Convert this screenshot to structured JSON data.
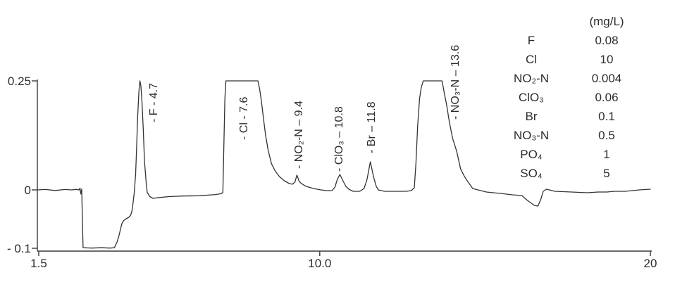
{
  "figure": {
    "background": "#ffffff",
    "text_color": "#2b2b2b",
    "line_color": "#3a3a3a"
  },
  "chart_data": {
    "type": "line",
    "title": "",
    "xlabel": "",
    "ylabel": "",
    "xlim": [
      1.5,
      20
    ],
    "ylim": [
      -0.12,
      0.27
    ],
    "grid": false,
    "legend_position": "top-right",
    "x_ticks": [
      {
        "value": 1.5,
        "label": "1.5"
      },
      {
        "value": 10.0,
        "label": "10.0"
      },
      {
        "value": 20,
        "label": "20"
      }
    ],
    "y_ticks": [
      {
        "value": 0.25,
        "label": "0.25"
      },
      {
        "value": 0,
        "label": "0"
      },
      {
        "value": -0.1,
        "label": "- 0.1"
      }
    ],
    "peaks": [
      {
        "analyte": "F",
        "retention_time_min": 4.7,
        "label": "- F - 4.7"
      },
      {
        "analyte": "Cl",
        "retention_time_min": 7.6,
        "label": "- Cl - 7.6"
      },
      {
        "analyte": "NO₂-N",
        "retention_time_min": 9.4,
        "label": "- NO₂-N – 9.4"
      },
      {
        "analyte": "ClO₃",
        "retention_time_min": 10.8,
        "label": "- ClO₃ – 10.8"
      },
      {
        "analyte": "Br",
        "retention_time_min": 11.8,
        "label": "- Br – 11.8"
      },
      {
        "analyte": "NO₃-N",
        "retention_time_min": 13.6,
        "label": "- NO₃-N – 13.6"
      }
    ],
    "trace": [
      [
        1.46,
        0
      ],
      [
        1.7,
        0.001
      ],
      [
        2.0,
        -0.001
      ],
      [
        2.3,
        0.001
      ],
      [
        2.5,
        0
      ],
      [
        2.62,
        0.0012
      ],
      [
        2.72,
        0
      ],
      [
        2.75,
        0.004
      ],
      [
        2.77,
        -0.007
      ],
      [
        2.8,
        0.002
      ],
      [
        2.82,
        -0.05
      ],
      [
        2.84,
        -0.099
      ],
      [
        3.1,
        -0.0996
      ],
      [
        3.4,
        -0.099
      ],
      [
        3.65,
        -0.0996
      ],
      [
        3.79,
        -0.099
      ],
      [
        3.87,
        -0.089
      ],
      [
        3.92,
        -0.08
      ],
      [
        3.97,
        -0.068
      ],
      [
        4.02,
        -0.057
      ],
      [
        4.07,
        -0.0525
      ],
      [
        4.14,
        -0.0495
      ],
      [
        4.22,
        -0.047
      ],
      [
        4.28,
        -0.0435
      ],
      [
        4.32,
        -0.036
      ],
      [
        4.35,
        -0.024
      ],
      [
        4.39,
        -0.004
      ],
      [
        4.43,
        0.037
      ],
      [
        4.46,
        0.097
      ],
      [
        4.49,
        0.166
      ],
      [
        4.53,
        0.227
      ],
      [
        4.56,
        0.25
      ],
      [
        4.59,
        0.238
      ],
      [
        4.62,
        0.205
      ],
      [
        4.66,
        0.14
      ],
      [
        4.7,
        0.065
      ],
      [
        4.75,
        0.016
      ],
      [
        4.78,
        -0.004
      ],
      [
        4.86,
        -0.0115
      ],
      [
        4.96,
        -0.0145
      ],
      [
        5.15,
        -0.013
      ],
      [
        5.45,
        -0.0115
      ],
      [
        5.85,
        -0.0105
      ],
      [
        6.35,
        -0.01
      ],
      [
        6.85,
        -0.008
      ],
      [
        7.02,
        -0.0065
      ],
      [
        7.07,
        -0.004
      ],
      [
        7.1,
        0.1
      ],
      [
        7.13,
        0.21
      ],
      [
        7.16,
        0.25
      ],
      [
        7.65,
        0.25
      ],
      [
        8.13,
        0.25
      ],
      [
        8.18,
        0.232
      ],
      [
        8.23,
        0.206
      ],
      [
        8.29,
        0.168
      ],
      [
        8.36,
        0.126
      ],
      [
        8.44,
        0.091
      ],
      [
        8.54,
        0.06
      ],
      [
        8.65,
        0.0435
      ],
      [
        8.78,
        0.0305
      ],
      [
        8.93,
        0.021
      ],
      [
        9.08,
        0.0145
      ],
      [
        9.18,
        0.013
      ],
      [
        9.25,
        0.018
      ],
      [
        9.31,
        0.034
      ],
      [
        9.38,
        0.019
      ],
      [
        9.45,
        0.0145
      ],
      [
        9.55,
        0.0095
      ],
      [
        9.66,
        0.0065
      ],
      [
        9.82,
        0.003
      ],
      [
        10.04,
        0
      ],
      [
        10.21,
        -0.0012
      ],
      [
        10.37,
        -0.0012
      ],
      [
        10.46,
        0.0065
      ],
      [
        10.53,
        0.024
      ],
      [
        10.61,
        0.0355
      ],
      [
        10.7,
        0.021
      ],
      [
        10.79,
        0.008
      ],
      [
        10.88,
        0.0016
      ],
      [
        11.01,
        -0.0024
      ],
      [
        11.21,
        -0.0024
      ],
      [
        11.34,
        0.003
      ],
      [
        11.43,
        0.024
      ],
      [
        11.53,
        0.0645
      ],
      [
        11.63,
        0.029
      ],
      [
        11.71,
        0.008
      ],
      [
        11.77,
        0
      ],
      [
        11.96,
        -0.0024
      ],
      [
        12.3,
        -0.0024
      ],
      [
        12.62,
        -0.0024
      ],
      [
        12.77,
        -0.0012
      ],
      [
        12.86,
        0.005
      ],
      [
        12.91,
        0.06
      ],
      [
        12.96,
        0.145
      ],
      [
        13.02,
        0.21
      ],
      [
        13.07,
        0.235
      ],
      [
        13.13,
        0.25
      ],
      [
        13.42,
        0.25
      ],
      [
        13.7,
        0.25
      ],
      [
        13.77,
        0.221
      ],
      [
        13.84,
        0.194
      ],
      [
        13.92,
        0.156
      ],
      [
        14.02,
        0.118
      ],
      [
        14.14,
        0.089
      ],
      [
        14.26,
        0.048
      ],
      [
        14.37,
        0.032
      ],
      [
        14.46,
        0.021
      ],
      [
        14.63,
        0.003
      ],
      [
        15.04,
        -0.0036
      ],
      [
        15.47,
        -0.006
      ],
      [
        15.83,
        -0.0084
      ],
      [
        16.11,
        -0.0096
      ],
      [
        16.28,
        -0.018
      ],
      [
        16.49,
        -0.0265
      ],
      [
        16.6,
        -0.0277
      ],
      [
        16.69,
        -0.0157
      ],
      [
        16.76,
        -0.0024
      ],
      [
        16.86,
        0.0016
      ],
      [
        17.11,
        -0.0024
      ],
      [
        17.61,
        -0.0036
      ],
      [
        18.09,
        -0.0048
      ],
      [
        18.42,
        -0.0036
      ],
      [
        18.68,
        -0.0036
      ],
      [
        18.92,
        -0.0024
      ],
      [
        19.25,
        -0.0024
      ],
      [
        19.67,
        0
      ],
      [
        20.0,
        0.0016
      ]
    ]
  },
  "legend_table": {
    "unit_header": "(mg/L)",
    "rows": [
      {
        "analyte": "F",
        "concentration": "0.08"
      },
      {
        "analyte": "Cl",
        "concentration": "10"
      },
      {
        "analyte": "NO₂-N",
        "concentration": "0.004"
      },
      {
        "analyte": "ClO₃",
        "concentration": "0.06"
      },
      {
        "analyte": "Br",
        "concentration": "0.1"
      },
      {
        "analyte": "NO₃-N",
        "concentration": "0.5"
      },
      {
        "analyte": "PO₄",
        "concentration": "1"
      },
      {
        "analyte": "SO₄",
        "concentration": "5"
      }
    ]
  }
}
